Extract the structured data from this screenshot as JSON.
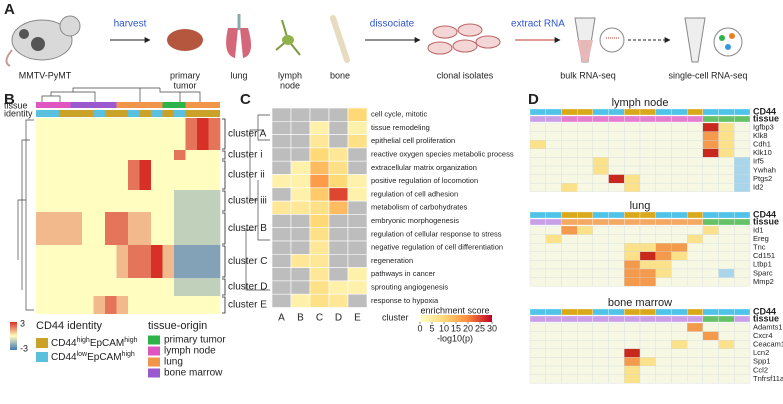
{
  "panel_a": {
    "label": "A",
    "mouse": "MMTV-PyMT",
    "harvest": "harvest",
    "tissues": [
      [
        "primary",
        "tumor"
      ],
      [
        "lung"
      ],
      [
        "lymph",
        "node"
      ],
      [
        "bone"
      ]
    ],
    "dissociate": "dissociate",
    "clonal": "clonal isolates",
    "extract": "extract RNA",
    "bulk": "bulk RNA-seq",
    "single": "single-cell RNA-seq"
  },
  "panel_b": {
    "label": "B",
    "row_labels": [
      "tissue",
      "identity"
    ],
    "tissue_colors": [
      "#e056c0",
      "#e056c0",
      "#e056c0",
      "#9b59d0",
      "#9b59d0",
      "#9b59d0",
      "#9b59d0",
      "#f0954a",
      "#f0954a",
      "#f0954a",
      "#f0954a",
      "#2db34a",
      "#2db34a",
      "#f0954a",
      "#f0954a",
      "#f0954a"
    ],
    "identity_colors": [
      "#5bc0de",
      "#5bc0de",
      "#c9a227",
      "#c9a227",
      "#c9a227",
      "#5bc0de",
      "#c9a227",
      "#c9a227",
      "#5bc0de",
      "#c9a227",
      "#5bc0de",
      "#c9a227",
      "#5bc0de",
      "#c9a227",
      "#c9a227",
      "#c9a227"
    ],
    "clusters": [
      {
        "name": "cluster A",
        "values": [
          0,
          0,
          0,
          0,
          0,
          0,
          0,
          0,
          0,
          0,
          0,
          0,
          0,
          2,
          3,
          2
        ]
      },
      {
        "name": "cluster i",
        "values": [
          0,
          0,
          0,
          0,
          0,
          0,
          0,
          0,
          0,
          0,
          0,
          0,
          2,
          0,
          0,
          0
        ]
      },
      {
        "name": "cluster ii",
        "values": [
          0,
          0,
          0,
          0,
          0,
          0,
          0,
          0,
          2,
          3,
          0,
          0,
          0,
          0,
          0,
          0
        ]
      },
      {
        "name": "cluster iii",
        "values": [
          0,
          0,
          0,
          0,
          0,
          0,
          0,
          0,
          0,
          0,
          0,
          0,
          -1,
          -1,
          -1,
          -1
        ]
      },
      {
        "name": "cluster B",
        "values": [
          1,
          1,
          1,
          1,
          0,
          0,
          2,
          2,
          1,
          1,
          0,
          0,
          -1,
          -1,
          -1,
          -1
        ]
      },
      {
        "name": "cluster C",
        "values": [
          0,
          0,
          0,
          0,
          0,
          0,
          0,
          1,
          2,
          2,
          3,
          1,
          -2,
          -2,
          -2,
          -2
        ]
      },
      {
        "name": "cluster D",
        "values": [
          0,
          0,
          0,
          0,
          0,
          0,
          0,
          0,
          0,
          0,
          0,
          0,
          -1,
          -1,
          -1,
          -1
        ]
      },
      {
        "name": "cluster E",
        "values": [
          0,
          0,
          0,
          0,
          0,
          1,
          2,
          1,
          0,
          0,
          0,
          0,
          0,
          0,
          0,
          0
        ]
      }
    ],
    "colorbar": {
      "max": 3,
      "min": -3
    },
    "legend_identity": {
      "title": "CD44 identity",
      "items": [
        {
          "label": [
            "CD44",
            "high",
            "EpCAM",
            "high"
          ],
          "color": "#c9a227"
        },
        {
          "label": [
            "CD44",
            "low",
            "EpCAM",
            "high"
          ],
          "color": "#5bc0de"
        }
      ]
    },
    "legend_tissue": {
      "title": "tissue-origin",
      "items": [
        {
          "label": "primary tumor",
          "color": "#2db34a"
        },
        {
          "label": "lymph node",
          "color": "#e056c0"
        },
        {
          "label": "lung",
          "color": "#f0954a"
        },
        {
          "label": "bone marrow",
          "color": "#9b59d0"
        }
      ]
    }
  },
  "panel_c": {
    "label": "C",
    "clusters": [
      "A",
      "B",
      "C",
      "D",
      "E"
    ],
    "axis_label": "cluster",
    "terms": [
      "cell cycle, mitotic",
      "tissue remodeling",
      "epithelial cell proliferation",
      "reactive oxygen species metabolic process",
      "extracellular matrix organization",
      "positive regulation of locomotion",
      "regulation of cell adhesion",
      "metabolism of carbohydrates",
      "embryonic morphogenesis",
      "regulation of cellular response to stress",
      "negative regulation of cell differentiation",
      "regeneration",
      "pathways in cancer",
      "sprouting angiogenesis",
      "response to hypoxia"
    ],
    "values": [
      [
        null,
        null,
        null,
        null,
        10
      ],
      [
        null,
        null,
        4,
        null,
        4
      ],
      [
        null,
        null,
        6,
        null,
        8
      ],
      [
        null,
        null,
        10,
        6,
        null
      ],
      [
        null,
        4,
        14,
        8,
        null
      ],
      [
        4,
        4,
        18,
        10,
        4
      ],
      [
        null,
        4,
        12,
        25,
        4
      ],
      [
        6,
        6,
        8,
        14,
        null
      ],
      [
        null,
        null,
        10,
        null,
        null
      ],
      [
        null,
        null,
        8,
        null,
        null
      ],
      [
        null,
        null,
        6,
        null,
        null
      ],
      [
        null,
        6,
        6,
        null,
        null
      ],
      [
        null,
        null,
        6,
        null,
        4
      ],
      [
        null,
        null,
        8,
        4,
        4
      ],
      [
        null,
        4,
        8,
        6,
        null
      ]
    ],
    "legend_title": "enrichment score",
    "legend_unit": "-log10(p)",
    "lim": [
      0,
      30
    ],
    "ticks": [
      0,
      5,
      10,
      15,
      20,
      25,
      30
    ]
  },
  "panel_d": {
    "label": "D",
    "row_labels": [
      "CD44",
      "tissue"
    ],
    "heatmaps": [
      {
        "title": "lymph node",
        "cd44_colors": [
          "#4fc3e8",
          "#4fc3e8",
          "#d9a91a",
          "#d9a91a",
          "#4fc3e8",
          "#4fc3e8",
          "#d9a91a",
          "#d9a91a",
          "#4fc3e8",
          "#4fc3e8",
          "#d9a91a",
          "#4fc3e8",
          "#4fc3e8",
          "#4fc3e8"
        ],
        "tissue_colors": [
          "#c9a0e8",
          "#c9a0e8",
          "#e67ecf",
          "#e67ecf",
          "#e67ecf",
          "#e67ecf",
          "#e67ecf",
          "#e67ecf",
          "#e67ecf",
          "#e67ecf",
          "#e67ecf",
          "#66c266",
          "#66c266",
          "#66c266"
        ],
        "genes": [
          "Igfbp3",
          "Klk8",
          "Cdh1",
          "Klk10",
          "Irf5",
          "Ywhah",
          "Ptgs2",
          "Id2"
        ],
        "values": [
          [
            0,
            0,
            0,
            0,
            0,
            0,
            0,
            0,
            0,
            0,
            0,
            3,
            1,
            0
          ],
          [
            0,
            0,
            0,
            0,
            0,
            0,
            0,
            0,
            0,
            0,
            0,
            2,
            1,
            0
          ],
          [
            1,
            0,
            0,
            0,
            0,
            0,
            0,
            0,
            0,
            0,
            0,
            2,
            1,
            0
          ],
          [
            0,
            0,
            0,
            0,
            0,
            0,
            0,
            0,
            0,
            0,
            0,
            3,
            1,
            0
          ],
          [
            0,
            0,
            0,
            0,
            1,
            0,
            0,
            0,
            0,
            0,
            0,
            0,
            0,
            -1
          ],
          [
            0,
            0,
            0,
            0,
            1,
            0,
            0,
            0,
            0,
            0,
            0,
            0,
            0,
            -1
          ],
          [
            0,
            0,
            0,
            0,
            0,
            3,
            1,
            0,
            0,
            0,
            0,
            0,
            0,
            -1
          ],
          [
            0,
            0,
            1,
            0,
            0,
            0,
            1,
            0,
            0,
            0,
            0,
            0,
            0,
            -1
          ]
        ]
      },
      {
        "title": "lung",
        "cd44_colors": [
          "#4fc3e8",
          "#4fc3e8",
          "#d9a91a",
          "#d9a91a",
          "#4fc3e8",
          "#4fc3e8",
          "#d9a91a",
          "#d9a91a",
          "#4fc3e8",
          "#4fc3e8",
          "#d9a91a",
          "#4fc3e8",
          "#4fc3e8",
          "#4fc3e8"
        ],
        "tissue_colors": [
          "#c9a0e8",
          "#c9a0e8",
          "#f4a962",
          "#f4a962",
          "#f4a962",
          "#f4a962",
          "#f4a962",
          "#f4a962",
          "#f4a962",
          "#f4a962",
          "#f4a962",
          "#66c266",
          "#66c266",
          "#66c266"
        ],
        "genes": [
          "Id1",
          "Ereg",
          "Tnc",
          "Cd151",
          "Ltbp1",
          "Sparc",
          "Mmp2"
        ],
        "values": [
          [
            0,
            0,
            2,
            1,
            0,
            0,
            0,
            0,
            0,
            0,
            0,
            1,
            0,
            0
          ],
          [
            0,
            1,
            0,
            0,
            0,
            0,
            0,
            0,
            0,
            0,
            1,
            0,
            0,
            0
          ],
          [
            0,
            0,
            0,
            0,
            0,
            0,
            1,
            1,
            2,
            2,
            0,
            0,
            0,
            0
          ],
          [
            0,
            0,
            0,
            0,
            0,
            0,
            1,
            3,
            2,
            1,
            0,
            0,
            0,
            0
          ],
          [
            0,
            0,
            0,
            0,
            0,
            0,
            2,
            1,
            1,
            0,
            0,
            0,
            0,
            0
          ],
          [
            0,
            0,
            0,
            0,
            0,
            0,
            2,
            2,
            1,
            0,
            0,
            0,
            -1,
            0
          ],
          [
            0,
            0,
            0,
            0,
            0,
            0,
            2,
            2,
            0,
            0,
            0,
            0,
            0,
            0
          ]
        ]
      },
      {
        "title": "bone marrow",
        "cd44_colors": [
          "#4fc3e8",
          "#4fc3e8",
          "#d9a91a",
          "#d9a91a",
          "#4fc3e8",
          "#4fc3e8",
          "#d9a91a",
          "#d9a91a",
          "#4fc3e8",
          "#4fc3e8",
          "#d9a91a",
          "#4fc3e8",
          "#4fc3e8",
          "#4fc3e8"
        ],
        "tissue_colors": [
          "#c9a0e8",
          "#c9a0e8",
          "#c9a0e8",
          "#c9a0e8",
          "#c9a0e8",
          "#c9a0e8",
          "#c9a0e8",
          "#c9a0e8",
          "#c9a0e8",
          "#c9a0e8",
          "#c9a0e8",
          "#66c266",
          "#66c266",
          "#c9a0e8"
        ],
        "genes": [
          "Adamts1",
          "Cxcr4",
          "Ceacam1",
          "Lcn2",
          "Spp1",
          "Ccl2",
          "Tnfrsf11a"
        ],
        "values": [
          [
            0,
            0,
            0,
            0,
            0,
            0,
            0,
            0,
            0,
            0,
            2,
            0,
            0,
            0
          ],
          [
            0,
            0,
            0,
            0,
            0,
            0,
            0,
            0,
            0,
            0,
            0,
            2,
            0,
            0
          ],
          [
            0,
            0,
            0,
            0,
            0,
            0,
            0,
            0,
            0,
            1,
            0,
            0,
            1,
            0
          ],
          [
            0,
            0,
            0,
            0,
            0,
            0,
            3,
            0,
            0,
            0,
            0,
            0,
            0,
            0
          ],
          [
            0,
            0,
            0,
            0,
            0,
            0,
            2,
            1,
            0,
            0,
            0,
            0,
            0,
            0
          ],
          [
            0,
            0,
            0,
            0,
            0,
            0,
            1,
            0,
            0,
            0,
            0,
            0,
            0,
            0
          ],
          [
            0,
            0,
            0,
            0,
            0,
            0,
            1,
            0,
            0,
            0,
            0,
            0,
            0,
            0
          ]
        ]
      }
    ]
  }
}
